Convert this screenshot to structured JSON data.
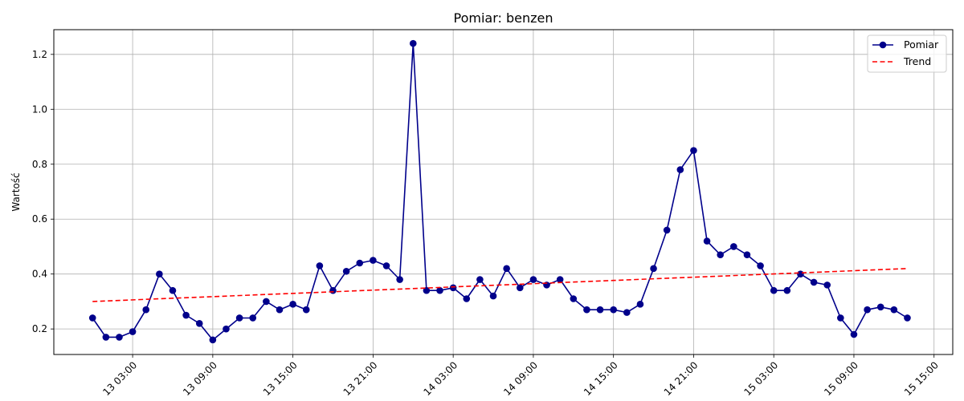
{
  "chart_data": {
    "type": "line",
    "title": "Pomiar: benzen",
    "xlabel": "",
    "ylabel": "Wartość",
    "x_tick_labels": [
      "13 03:00",
      "13 09:00",
      "13 15:00",
      "13 21:00",
      "14 03:00",
      "14 09:00",
      "14 15:00",
      "14 21:00",
      "15 03:00",
      "15 09:00",
      "15 15:00"
    ],
    "y_ticks": [
      0.2,
      0.4,
      0.6,
      0.8,
      1.0,
      1.2
    ],
    "y_tick_labels": [
      "0.2",
      "0.4",
      "0.6",
      "0.8",
      "1.0",
      "1.2"
    ],
    "ylim": [
      0.107,
      1.29
    ],
    "xlim_hours": [
      -3.9,
      63.4
    ],
    "grid": true,
    "legend_position": "top-right",
    "series": [
      {
        "name": "Pomiar",
        "style": "line-with-markers",
        "color": "#00008b",
        "x_hours": [
          -1,
          0,
          1,
          2,
          3,
          4,
          5,
          6,
          7,
          8,
          9,
          10,
          11,
          12,
          13,
          14,
          15,
          16,
          17,
          18,
          19,
          20,
          21,
          22,
          23,
          24,
          25,
          26,
          27,
          28,
          29,
          30,
          31,
          32,
          33,
          34,
          35,
          36,
          37,
          38,
          39,
          40,
          41,
          42,
          43,
          44,
          45,
          46,
          47,
          48,
          49,
          50,
          51,
          52,
          53,
          54,
          55,
          56,
          57,
          58,
          59,
          60
        ],
        "values": [
          0.24,
          0.17,
          0.17,
          0.19,
          0.27,
          0.4,
          0.34,
          0.25,
          0.22,
          0.16,
          0.2,
          0.24,
          0.24,
          0.3,
          0.27,
          0.29,
          0.27,
          0.43,
          0.34,
          0.41,
          0.44,
          0.45,
          0.43,
          0.38,
          1.24,
          0.34,
          0.34,
          0.35,
          0.31,
          0.38,
          0.32,
          0.42,
          0.35,
          0.38,
          0.36,
          0.38,
          0.31,
          0.27,
          0.27,
          0.27,
          0.26,
          0.29,
          0.42,
          0.56,
          0.78,
          0.85,
          0.52,
          0.47,
          0.5,
          0.47,
          0.43,
          0.34,
          0.34,
          0.4,
          0.37,
          0.36,
          0.24,
          0.18,
          0.27,
          0.28,
          0.27,
          0.24
        ]
      },
      {
        "name": "Trend",
        "style": "dashed",
        "color": "#ff0000",
        "x_hours": [
          -1,
          60
        ],
        "values": [
          0.3,
          0.42
        ]
      }
    ]
  }
}
